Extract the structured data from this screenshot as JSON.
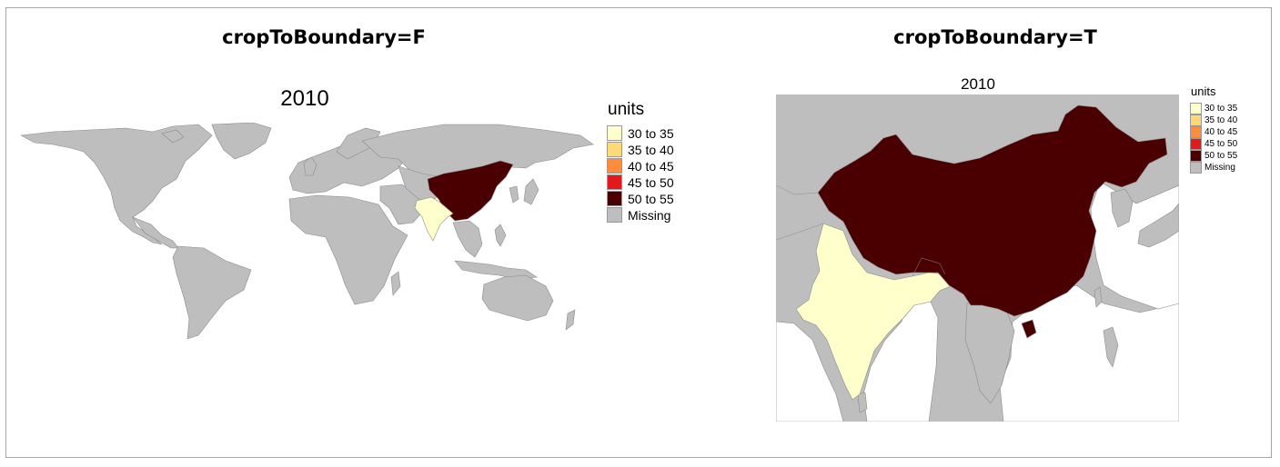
{
  "panels": [
    {
      "heading": "cropToBoundary=F",
      "map_title": "2010",
      "legend": {
        "title": "units",
        "items": [
          {
            "label": "30 to 35",
            "color": "#FFFFCC"
          },
          {
            "label": "35 to 40",
            "color": "#FED976"
          },
          {
            "label": "40 to 45",
            "color": "#FD8D3C"
          },
          {
            "label": "45 to 50",
            "color": "#E31A1C"
          },
          {
            "label": "50 to 55",
            "color": "#4A0000"
          },
          {
            "label": "Missing",
            "color": "#BEBEBE"
          }
        ]
      },
      "highlighted_regions": [
        {
          "region": "China",
          "class": "50 to 55"
        },
        {
          "region": "India",
          "class": "30 to 35"
        }
      ]
    },
    {
      "heading": "cropToBoundary=T",
      "map_title": "2010",
      "legend": {
        "title": "units",
        "items": [
          {
            "label": "30 to 35",
            "color": "#FFFFCC"
          },
          {
            "label": "35 to 40",
            "color": "#FED976"
          },
          {
            "label": "40 to 45",
            "color": "#FD8D3C"
          },
          {
            "label": "45 to 50",
            "color": "#E31A1C"
          },
          {
            "label": "50 to 55",
            "color": "#4A0000"
          },
          {
            "label": "Missing",
            "color": "#BEBEBE"
          }
        ]
      },
      "highlighted_regions": [
        {
          "region": "China",
          "class": "50 to 55"
        },
        {
          "region": "India",
          "class": "30 to 35"
        }
      ]
    }
  ],
  "colors": {
    "missing": "#BEBEBE",
    "border": "#8C8C8C",
    "frame": "#A6A6A6"
  }
}
